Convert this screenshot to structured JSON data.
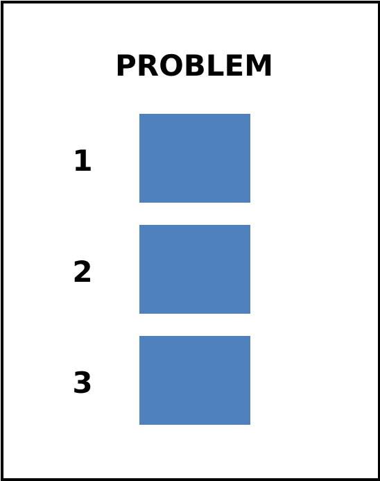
{
  "title": "PROBLEM",
  "box_color": "#4f81bd",
  "items": [
    {
      "label": "1"
    },
    {
      "label": "2"
    },
    {
      "label": "3"
    }
  ]
}
